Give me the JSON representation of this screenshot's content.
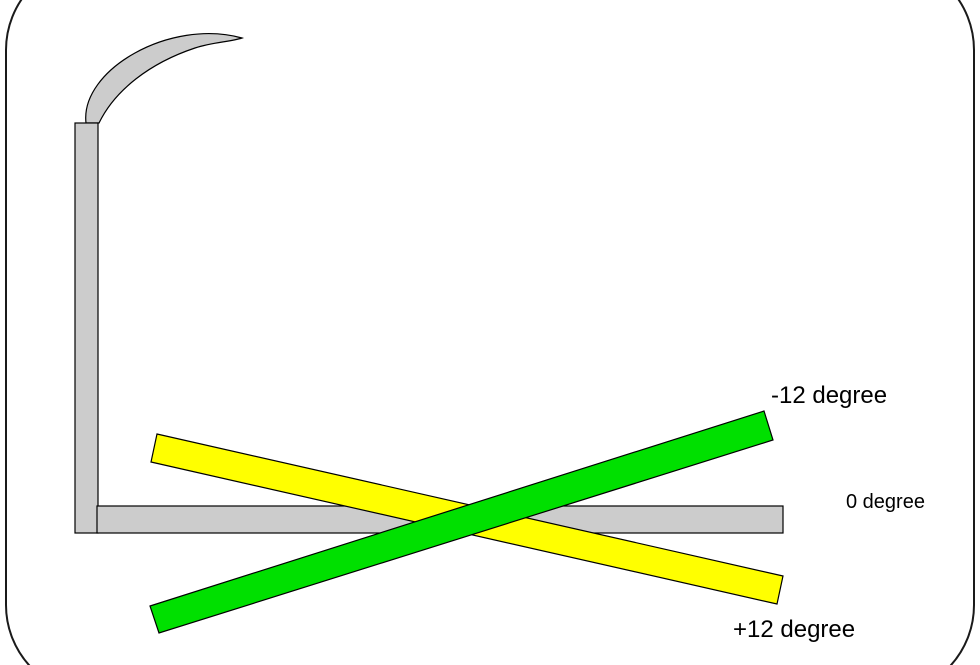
{
  "diagram": {
    "labels": {
      "minus_12": "-12 degree",
      "zero": "0 degree",
      "plus_12": "+12 degree"
    },
    "colors": {
      "frame_stroke": "#1a1a1a",
      "beam_gray": "#cccccc",
      "beam_yellow": "#ffff00",
      "beam_green": "#00e000",
      "outline": "#000000",
      "background": "#ffffff"
    },
    "angles_degrees": {
      "minus_12": -12,
      "zero": 0,
      "plus_12": 12
    }
  }
}
